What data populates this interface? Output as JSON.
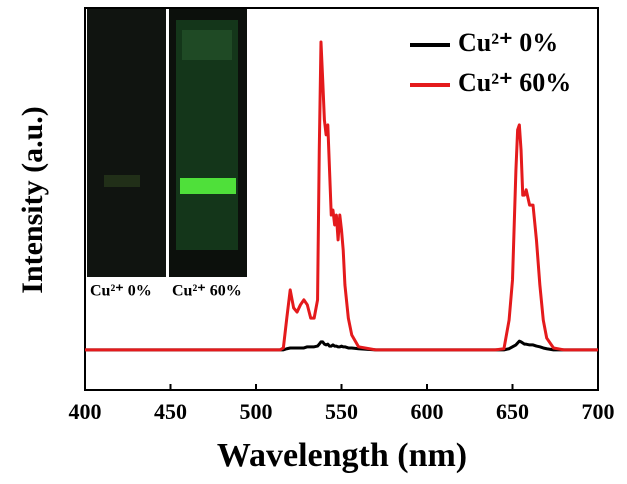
{
  "chart_data": {
    "type": "line",
    "xlabel": "Wavelength (nm)",
    "ylabel": "Intensity (a.u.)",
    "x": [
      400,
      450,
      500,
      510,
      514,
      516,
      518,
      520,
      522,
      524,
      526,
      528,
      530,
      532,
      534,
      536,
      537,
      538,
      539,
      540,
      541,
      542,
      543,
      544,
      545,
      546,
      547,
      548,
      549,
      550,
      551,
      552,
      554,
      556,
      560,
      570,
      600,
      640,
      645,
      648,
      650,
      652,
      653,
      654,
      655,
      656,
      657,
      658,
      660,
      662,
      664,
      666,
      668,
      670,
      674,
      680,
      700
    ],
    "series": [
      {
        "name": "Cu²⁺ 0%",
        "color": "#000000",
        "values": [
          10.5,
          10.5,
          10.5,
          10.5,
          10.5,
          10.5,
          10.8,
          11,
          11,
          11,
          11,
          11,
          11.3,
          11.3,
          11.3,
          11.5,
          12,
          12.6,
          12.6,
          12,
          11.8,
          12,
          11.5,
          11.5,
          11.8,
          11.5,
          11.5,
          11.3,
          11.3,
          11.5,
          11.3,
          11.3,
          11,
          11,
          10.8,
          10.5,
          10.5,
          10.5,
          10.5,
          10.8,
          11.3,
          11.8,
          12.3,
          12.8,
          12.6,
          12.3,
          12,
          12,
          11.8,
          11.8,
          11.5,
          11.3,
          11,
          10.8,
          10.5,
          10.5,
          10.5
        ]
      },
      {
        "name": "Cu²⁺ 60%",
        "color": "#e41a1c",
        "values": [
          10.5,
          10.5,
          10.5,
          10.5,
          10.5,
          11,
          18.8,
          26.2,
          21.5,
          20.4,
          22.3,
          23.6,
          22.3,
          18.8,
          18.8,
          23.6,
          62.8,
          91.1,
          81.2,
          70.7,
          66.8,
          69.4,
          57.6,
          45.8,
          47.1,
          43.2,
          45.8,
          39.3,
          45.8,
          41.9,
          36.6,
          27.5,
          18.8,
          14.4,
          11.3,
          10.5,
          10.5,
          10.5,
          10.8,
          18.3,
          28.8,
          57.6,
          68.1,
          69.4,
          62.8,
          51,
          51,
          52.4,
          48.4,
          48.4,
          39.3,
          27.5,
          18.3,
          13.6,
          11,
          10.5,
          10.5
        ]
      }
    ],
    "xlim": [
      400,
      700
    ],
    "xticks": [
      400,
      450,
      500,
      550,
      600,
      650,
      700
    ],
    "ylim": [
      0,
      100
    ],
    "grid": false,
    "legend_position": "upper right",
    "inset": {
      "labels": [
        "Cu²⁺ 0%",
        "Cu²⁺ 60%"
      ]
    }
  }
}
